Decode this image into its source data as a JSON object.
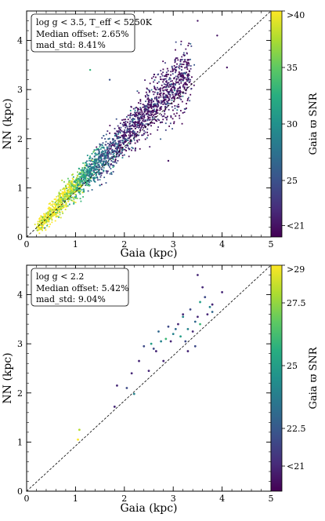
{
  "chart_data": [
    {
      "type": "scatter",
      "xlabel": "Gaia (kpc)",
      "ylabel": "NN (kpc)",
      "xlim": [
        0,
        5
      ],
      "ylim": [
        0,
        4.6
      ],
      "x_ticks": [
        0,
        1,
        2,
        3,
        4,
        5
      ],
      "y_ticks": [
        0,
        1,
        2,
        3,
        4
      ],
      "one_to_one_line": true,
      "annotation": [
        "log g < 3.5, T_eff < 5250K",
        "Median offset: 2.65%",
        "mad_std: 8.41%"
      ],
      "colorbar": {
        "label": "Gaia ϖ SNR",
        "range": [
          20,
          40
        ],
        "ticks": [
          {
            "value": 40,
            "label": ">40"
          },
          {
            "value": 35,
            "label": "35"
          },
          {
            "value": 30,
            "label": "30"
          },
          {
            "value": 25,
            "label": "25"
          },
          {
            "value": 21,
            "label": "<21"
          }
        ]
      },
      "cluster_points": [
        [
          0.3,
          0.28,
          40
        ],
        [
          0.45,
          0.42,
          40
        ],
        [
          0.6,
          0.58,
          40
        ],
        [
          0.7,
          0.72,
          39
        ],
        [
          0.8,
          0.85,
          38
        ],
        [
          0.9,
          0.92,
          37
        ],
        [
          1.0,
          1.02,
          36
        ],
        [
          1.1,
          1.12,
          34
        ],
        [
          1.2,
          1.25,
          32
        ],
        [
          1.3,
          1.35,
          30
        ],
        [
          1.4,
          1.45,
          29
        ],
        [
          1.5,
          1.55,
          27
        ],
        [
          1.6,
          1.62,
          26
        ],
        [
          1.7,
          1.72,
          25
        ],
        [
          1.8,
          1.85,
          24
        ],
        [
          1.9,
          1.95,
          23
        ],
        [
          2.0,
          2.05,
          22
        ],
        [
          2.1,
          2.15,
          22
        ],
        [
          2.2,
          2.25,
          22
        ],
        [
          2.3,
          2.35,
          21
        ],
        [
          2.4,
          2.45,
          21
        ],
        [
          2.5,
          2.55,
          21
        ],
        [
          2.6,
          2.65,
          21
        ],
        [
          2.7,
          2.75,
          21
        ],
        [
          2.8,
          2.85,
          21
        ],
        [
          2.9,
          2.95,
          21
        ],
        [
          3.0,
          3.05,
          21
        ],
        [
          3.1,
          3.15,
          21
        ],
        [
          3.2,
          3.25,
          21
        ],
        [
          3.3,
          3.3,
          21
        ]
      ],
      "outliers": [
        [
          3.5,
          4.4,
          21
        ],
        [
          1.3,
          3.4,
          33
        ],
        [
          1.7,
          3.2,
          25
        ],
        [
          2.9,
          1.55,
          21
        ],
        [
          4.1,
          3.45,
          21
        ],
        [
          3.9,
          4.1,
          21
        ],
        [
          1.5,
          1.05,
          28
        ]
      ]
    },
    {
      "type": "scatter",
      "xlabel": "Gaia (kpc)",
      "ylabel": "NN (kpc)",
      "xlim": [
        0,
        5
      ],
      "ylim": [
        0,
        4.6
      ],
      "x_ticks": [
        0,
        1,
        2,
        3,
        4,
        5
      ],
      "y_ticks": [
        0,
        1,
        2,
        3,
        4
      ],
      "one_to_one_line": true,
      "annotation": [
        "log g < 2.2",
        "Median offset: 5.42%",
        "mad_std: 9.04%"
      ],
      "colorbar": {
        "label": "Gaia ϖ SNR",
        "range": [
          20,
          29
        ],
        "ticks": [
          {
            "value": 29,
            "label": ">29"
          },
          {
            "value": 27.5,
            "label": "27.5"
          },
          {
            "value": 25,
            "label": "25"
          },
          {
            "value": 22.5,
            "label": "22.5"
          },
          {
            "value": 21,
            "label": "<21"
          }
        ]
      },
      "points": [
        [
          1.05,
          1.05,
          29
        ],
        [
          1.08,
          1.25,
          28
        ],
        [
          1.8,
          1.72,
          21
        ],
        [
          1.85,
          2.15,
          21
        ],
        [
          2.05,
          2.1,
          22
        ],
        [
          2.15,
          2.4,
          21
        ],
        [
          2.2,
          1.98,
          24
        ],
        [
          2.3,
          2.65,
          21
        ],
        [
          2.4,
          2.95,
          22
        ],
        [
          2.5,
          2.45,
          21
        ],
        [
          2.55,
          3.0,
          25
        ],
        [
          2.6,
          2.9,
          22
        ],
        [
          2.65,
          2.85,
          21
        ],
        [
          2.7,
          3.25,
          23
        ],
        [
          2.75,
          3.05,
          24
        ],
        [
          2.8,
          2.65,
          21
        ],
        [
          2.85,
          3.1,
          26
        ],
        [
          2.9,
          3.35,
          22
        ],
        [
          2.95,
          3.05,
          21
        ],
        [
          3.0,
          3.2,
          24
        ],
        [
          3.05,
          3.3,
          23
        ],
        [
          3.1,
          3.4,
          21
        ],
        [
          3.15,
          3.15,
          25
        ],
        [
          3.2,
          3.6,
          21
        ],
        [
          3.25,
          3.05,
          22
        ],
        [
          3.3,
          3.3,
          24
        ],
        [
          3.35,
          3.7,
          22
        ],
        [
          3.4,
          3.25,
          21
        ],
        [
          3.45,
          3.45,
          23
        ],
        [
          3.5,
          3.55,
          21
        ],
        [
          3.55,
          3.85,
          25
        ],
        [
          3.6,
          4.15,
          21
        ],
        [
          3.65,
          3.95,
          22
        ],
        [
          3.7,
          3.6,
          21
        ],
        [
          3.75,
          3.75,
          24
        ],
        [
          3.8,
          3.65,
          23
        ],
        [
          3.5,
          4.4,
          21
        ],
        [
          3.3,
          2.85,
          21
        ],
        [
          3.45,
          2.95,
          22
        ],
        [
          4.0,
          4.05,
          21
        ],
        [
          3.2,
          3.55,
          24
        ],
        [
          3.55,
          3.4,
          26
        ],
        [
          3.8,
          3.8,
          21
        ]
      ]
    }
  ]
}
